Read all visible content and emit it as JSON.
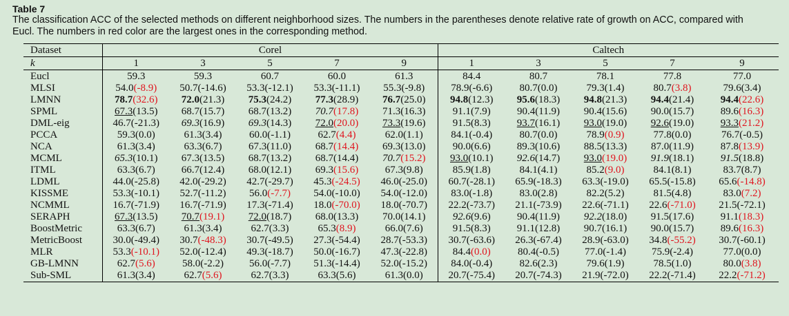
{
  "table_label": "Table 7",
  "caption_line1": "The classification ACC of the selected methods on different neighborhood sizes. The numbers in the parentheses denote relative rate of growth on ACC, compared with",
  "caption_line2": "Eucl. The numbers in red color are the largest ones in the corresponding method.",
  "header": {
    "dataset_label": "Dataset",
    "k_label": "k",
    "groups": [
      "Corel",
      "Caltech"
    ],
    "k_values": [
      "1",
      "3",
      "5",
      "7",
      "9",
      "1",
      "3",
      "5",
      "7",
      "9"
    ]
  },
  "rows": [
    {
      "name": "Eucl",
      "cells": [
        {
          "v": "59.3",
          "g": ""
        },
        {
          "v": "59.3",
          "g": ""
        },
        {
          "v": "60.7",
          "g": ""
        },
        {
          "v": "60.0",
          "g": ""
        },
        {
          "v": "61.3",
          "g": ""
        },
        {
          "v": "84.4",
          "g": ""
        },
        {
          "v": "80.7",
          "g": ""
        },
        {
          "v": "78.1",
          "g": ""
        },
        {
          "v": "77.8",
          "g": ""
        },
        {
          "v": "77.0",
          "g": ""
        }
      ]
    },
    {
      "name": "MLSI",
      "cells": [
        {
          "v": "54.0",
          "g": "(-8.9)",
          "red": true
        },
        {
          "v": "50.7",
          "g": "(-14.6)"
        },
        {
          "v": "53.3",
          "g": "(-12.1)"
        },
        {
          "v": "53.3",
          "g": "(-11.1)"
        },
        {
          "v": "55.3",
          "g": "(-9.8)"
        },
        {
          "v": "78.9",
          "g": "(-6.6)"
        },
        {
          "v": "80.7",
          "g": "(0.0)"
        },
        {
          "v": "79.3",
          "g": "(1.4)"
        },
        {
          "v": "80.7",
          "g": "(3.8)",
          "red": true
        },
        {
          "v": "79.6",
          "g": "(3.4)"
        }
      ]
    },
    {
      "name": "LMNN",
      "cells": [
        {
          "v": "78.7",
          "g": "(32.6)",
          "red": true,
          "b": true
        },
        {
          "v": "72.0",
          "g": "(21.3)",
          "b": true
        },
        {
          "v": "75.3",
          "g": "(24.2)",
          "b": true
        },
        {
          "v": "77.3",
          "g": "(28.9)",
          "b": true
        },
        {
          "v": "76.7",
          "g": "(25.0)",
          "b": true
        },
        {
          "v": "94.8",
          "g": "(12.3)",
          "b": true
        },
        {
          "v": "95.6",
          "g": "(18.3)",
          "b": true
        },
        {
          "v": "94.8",
          "g": "(21.3)",
          "b": true
        },
        {
          "v": "94.4",
          "g": "(21.4)",
          "b": true
        },
        {
          "v": "94.4",
          "g": "(22.6)",
          "red": true,
          "b": true
        }
      ]
    },
    {
      "name": "SPML",
      "cells": [
        {
          "v": "67.3",
          "g": "(13.5)",
          "u": true
        },
        {
          "v": "68.7",
          "g": "(15.7)"
        },
        {
          "v": "68.7",
          "g": "(13.2)"
        },
        {
          "v": "70.7",
          "g": "(17.8)",
          "red": true,
          "i": true
        },
        {
          "v": "71.3",
          "g": "(16.3)"
        },
        {
          "v": "91.1",
          "g": "(7.9)"
        },
        {
          "v": "90.4",
          "g": "(11.9)"
        },
        {
          "v": "90.4",
          "g": "(15.6)"
        },
        {
          "v": "90.0",
          "g": "(15.7)"
        },
        {
          "v": "89.6",
          "g": "(16.3)",
          "red": true
        }
      ]
    },
    {
      "name": "DML-eig",
      "cells": [
        {
          "v": "46.7",
          "g": "(-21.3)"
        },
        {
          "v": "69.3",
          "g": "(16.9)",
          "i": true
        },
        {
          "v": "69.3",
          "g": "(14.3)",
          "i": true
        },
        {
          "v": "72.0",
          "g": "(20.0)",
          "red": true,
          "u": true
        },
        {
          "v": "73.3",
          "g": "(19.6)",
          "u": true
        },
        {
          "v": "91.5",
          "g": "(8.3)"
        },
        {
          "v": "93.7",
          "g": "(16.1)",
          "u": true
        },
        {
          "v": "93.0",
          "g": "(19.0)",
          "u": true
        },
        {
          "v": "92.6",
          "g": "(19.0)",
          "u": true
        },
        {
          "v": "93.3",
          "g": "(21.2)",
          "red": true,
          "u": true
        }
      ]
    },
    {
      "name": "PCCA",
      "cells": [
        {
          "v": "59.3",
          "g": "(0.0)"
        },
        {
          "v": "61.3",
          "g": "(3.4)"
        },
        {
          "v": "60.0",
          "g": "(-1.1)"
        },
        {
          "v": "62.7",
          "g": "(4.4)",
          "red": true
        },
        {
          "v": "62.0",
          "g": "(1.1)"
        },
        {
          "v": "84.1",
          "g": "(-0.4)"
        },
        {
          "v": "80.7",
          "g": "(0.0)"
        },
        {
          "v": "78.9",
          "g": "(0.9)",
          "red": true
        },
        {
          "v": "77.8",
          "g": "(0.0)"
        },
        {
          "v": "76.7",
          "g": "(-0.5)"
        }
      ]
    },
    {
      "name": "NCA",
      "cells": [
        {
          "v": "61.3",
          "g": "(3.4)"
        },
        {
          "v": "63.3",
          "g": "(6.7)"
        },
        {
          "v": "67.3",
          "g": "(11.0)"
        },
        {
          "v": "68.7",
          "g": "(14.4)",
          "red": true
        },
        {
          "v": "69.3",
          "g": "(13.0)"
        },
        {
          "v": "90.0",
          "g": "(6.6)"
        },
        {
          "v": "89.3",
          "g": "(10.6)"
        },
        {
          "v": "88.5",
          "g": "(13.3)"
        },
        {
          "v": "87.0",
          "g": "(11.9)"
        },
        {
          "v": "87.8",
          "g": "(13.9)",
          "red": true
        }
      ]
    },
    {
      "name": "MCML",
      "cells": [
        {
          "v": "65.3",
          "g": "(10.1)",
          "i": true
        },
        {
          "v": "67.3",
          "g": "(13.5)"
        },
        {
          "v": "68.7",
          "g": "(13.2)"
        },
        {
          "v": "68.7",
          "g": "(14.4)"
        },
        {
          "v": "70.7",
          "g": "(15.2)",
          "red": true,
          "i": true
        },
        {
          "v": "93.0",
          "g": "(10.1)",
          "u": true
        },
        {
          "v": "92.6",
          "g": "(14.7)",
          "i": true
        },
        {
          "v": "93.0",
          "g": "(19.0)",
          "red": true,
          "u": true
        },
        {
          "v": "91.9",
          "g": "(18.1)",
          "i": true
        },
        {
          "v": "91.5",
          "g": "(18.8)",
          "i": true
        }
      ]
    },
    {
      "name": "ITML",
      "cells": [
        {
          "v": "63.3",
          "g": "(6.7)"
        },
        {
          "v": "66.7",
          "g": "(12.4)"
        },
        {
          "v": "68.0",
          "g": "(12.1)"
        },
        {
          "v": "69.3",
          "g": "(15.6)",
          "red": true
        },
        {
          "v": "67.3",
          "g": "(9.8)"
        },
        {
          "v": "85.9",
          "g": "(1.8)"
        },
        {
          "v": "84.1",
          "g": "(4.1)"
        },
        {
          "v": "85.2",
          "g": "(9.0)",
          "red": true
        },
        {
          "v": "84.1",
          "g": "(8.1)"
        },
        {
          "v": "83.7",
          "g": "(8.7)"
        }
      ]
    },
    {
      "name": "LDML",
      "cells": [
        {
          "v": "44.0",
          "g": "(-25.8)"
        },
        {
          "v": "42.0",
          "g": "(-29.2)"
        },
        {
          "v": "42.7",
          "g": "(-29.7)"
        },
        {
          "v": "45.3",
          "g": "(-24.5)",
          "red": true
        },
        {
          "v": "46.0",
          "g": "(-25.0)"
        },
        {
          "v": "60.7",
          "g": "(-28.1)"
        },
        {
          "v": "65.9",
          "g": "(-18.3)"
        },
        {
          "v": "63.3",
          "g": "(-19.0)"
        },
        {
          "v": "65.5",
          "g": "(-15.8)"
        },
        {
          "v": "65.6",
          "g": "(-14.8)",
          "red": true
        }
      ]
    },
    {
      "name": "KISSME",
      "cells": [
        {
          "v": "53.3",
          "g": "(-10.1)"
        },
        {
          "v": "52.7",
          "g": "(-11.2)"
        },
        {
          "v": "56.0",
          "g": "(-7.7)",
          "red": true
        },
        {
          "v": "54.0",
          "g": "(-10.0)"
        },
        {
          "v": "54.0",
          "g": "(-12.0)"
        },
        {
          "v": "83.0",
          "g": "(-1.8)"
        },
        {
          "v": "83.0",
          "g": "(2.8)"
        },
        {
          "v": "82.2",
          "g": "(5.2)"
        },
        {
          "v": "81.5",
          "g": "(4.8)"
        },
        {
          "v": "83.0",
          "g": "(7.2)",
          "red": true
        }
      ]
    },
    {
      "name": "NCMML",
      "cells": [
        {
          "v": "16.7",
          "g": "(-71.9)"
        },
        {
          "v": "16.7",
          "g": "(-71.9)"
        },
        {
          "v": "17.3",
          "g": "(-71.4)"
        },
        {
          "v": "18.0",
          "g": "(-70.0)",
          "red": true
        },
        {
          "v": "18.0",
          "g": "(-70.7)"
        },
        {
          "v": "22.2",
          "g": "(-73.7)"
        },
        {
          "v": "21.1",
          "g": "(-73.9)"
        },
        {
          "v": "22.6",
          "g": "(-71.1)"
        },
        {
          "v": "22.6",
          "g": "(-71.0)",
          "red": true
        },
        {
          "v": "21.5",
          "g": "(-72.1)"
        }
      ]
    },
    {
      "name": "SERAPH",
      "cells": [
        {
          "v": "67.3",
          "g": "(13.5)",
          "u": true
        },
        {
          "v": "70.7",
          "g": "(19.1)",
          "red": true,
          "u": true
        },
        {
          "v": "72.0",
          "g": "(18.7)",
          "u": true
        },
        {
          "v": "68.0",
          "g": "(13.3)"
        },
        {
          "v": "70.0",
          "g": "(14.1)"
        },
        {
          "v": "92.6",
          "g": "(9.6)",
          "i": true
        },
        {
          "v": "90.4",
          "g": "(11.9)"
        },
        {
          "v": "92.2",
          "g": "(18.0)",
          "i": true
        },
        {
          "v": "91.5",
          "g": "(17.6)"
        },
        {
          "v": "91.1",
          "g": "(18.3)",
          "red": true
        }
      ]
    },
    {
      "name": "BoostMetric",
      "cells": [
        {
          "v": "63.3",
          "g": "(6.7)"
        },
        {
          "v": "61.3",
          "g": "(3.4)"
        },
        {
          "v": "62.7",
          "g": "(3.3)"
        },
        {
          "v": "65.3",
          "g": "(8.9)",
          "red": true
        },
        {
          "v": "66.0",
          "g": "(7.6)"
        },
        {
          "v": "91.5",
          "g": "(8.3)"
        },
        {
          "v": "91.1",
          "g": "(12.8)"
        },
        {
          "v": "90.7",
          "g": "(16.1)"
        },
        {
          "v": "90.0",
          "g": "(15.7)"
        },
        {
          "v": "89.6",
          "g": "(16.3)",
          "red": true
        }
      ]
    },
    {
      "name": "MetricBoost",
      "cells": [
        {
          "v": "30.0",
          "g": "(-49.4)"
        },
        {
          "v": "30.7",
          "g": "(-48.3)",
          "red": true
        },
        {
          "v": "30.7",
          "g": "(-49.5)"
        },
        {
          "v": "27.3",
          "g": "(-54.4)"
        },
        {
          "v": "28.7",
          "g": "(-53.3)"
        },
        {
          "v": "30.7",
          "g": "(-63.6)"
        },
        {
          "v": "26.3",
          "g": "(-67.4)"
        },
        {
          "v": "28.9",
          "g": "(-63.0)"
        },
        {
          "v": "34.8",
          "g": "(-55.2)",
          "red": true
        },
        {
          "v": "30.7",
          "g": "(-60.1)"
        }
      ]
    },
    {
      "name": "MLR",
      "cells": [
        {
          "v": "53.3",
          "g": "(-10.1)",
          "red": true
        },
        {
          "v": "52.0",
          "g": "(-12.4)"
        },
        {
          "v": "49.3",
          "g": "(-18.7)"
        },
        {
          "v": "50.0",
          "g": "(-16.7)"
        },
        {
          "v": "47.3",
          "g": "(-22.8)"
        },
        {
          "v": "84.4",
          "g": "(0.0)",
          "red": true
        },
        {
          "v": "80.4",
          "g": "(-0.5)"
        },
        {
          "v": "77.0",
          "g": "(-1.4)"
        },
        {
          "v": "75.9",
          "g": "(-2.4)"
        },
        {
          "v": "77.0",
          "g": "(0.0)"
        }
      ]
    },
    {
      "name": "GB-LMNN",
      "cells": [
        {
          "v": "62.7",
          "g": "(5.6)",
          "red": true
        },
        {
          "v": "58.0",
          "g": "(-2.2)"
        },
        {
          "v": "56.0",
          "g": "(-7.7)"
        },
        {
          "v": "51.3",
          "g": "(-14.4)"
        },
        {
          "v": "52.0",
          "g": "(-15.2)"
        },
        {
          "v": "84.0",
          "g": "(-0.4)"
        },
        {
          "v": "82.6",
          "g": "(2.3)"
        },
        {
          "v": "79.6",
          "g": "(1.9)"
        },
        {
          "v": "78.5",
          "g": "(1.0)"
        },
        {
          "v": "80.0",
          "g": "(3.8)",
          "red": true
        }
      ]
    },
    {
      "name": "Sub-SML",
      "cells": [
        {
          "v": "61.3",
          "g": "(3.4)"
        },
        {
          "v": "62.7",
          "g": "(5.6)",
          "red": true
        },
        {
          "v": "62.7",
          "g": "(3.3)"
        },
        {
          "v": "63.3",
          "g": "(5.6)"
        },
        {
          "v": "61.3",
          "g": "(0.0)"
        },
        {
          "v": "20.7",
          "g": "(-75.4)"
        },
        {
          "v": "20.7",
          "g": "(-74.3)"
        },
        {
          "v": "21.9",
          "g": "(-72.0)"
        },
        {
          "v": "22.2",
          "g": "(-71.4)"
        },
        {
          "v": "22.2",
          "g": "(-71.2)",
          "red": true
        }
      ]
    }
  ],
  "colors": {
    "background": "#d8e8d8",
    "highlight_red": "#e0141e",
    "text": "#111111"
  }
}
